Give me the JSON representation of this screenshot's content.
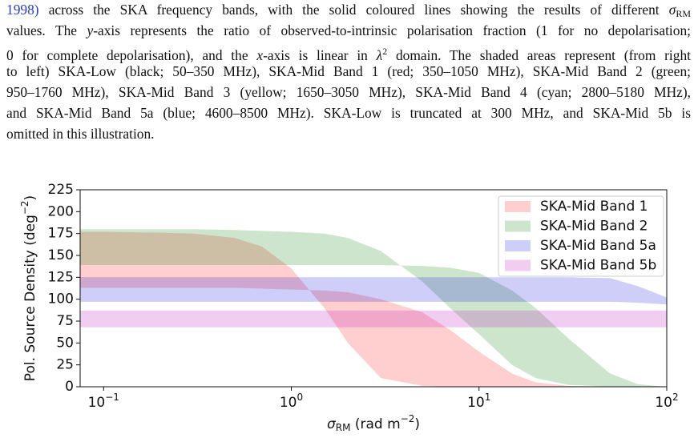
{
  "caption": {
    "lines": [
      [
        {
          "text": "1998)",
          "style": "link"
        },
        " across the SKA frequency bands, with the solid coloured lines showing the results of different ",
        {
          "text": "σ",
          "style": "i"
        },
        {
          "text": "RM",
          "style": "sub"
        }
      ],
      [
        "values. The ",
        {
          "text": "y",
          "style": "i"
        },
        "-axis represents the ratio of observed-to-intrinsic polarisation fraction (1 for no depolarisation;"
      ],
      [
        "0 for complete depolarisation), and the ",
        {
          "text": "x",
          "style": "i"
        },
        "-axis is linear in ",
        {
          "text": "λ",
          "style": "i"
        },
        {
          "text": "2",
          "style": "sup"
        },
        " domain. The shaded areas represent (from right"
      ],
      [
        "to left) SKA-Low (black; 50–350 MHz), SKA-Mid Band 1 (red; 350–1050 MHz), SKA-Mid Band 2 (green;"
      ],
      [
        "950–1760 MHz), SKA-Mid Band 3 (yellow; 1650–3050 MHz), SKA-Mid Band 4 (cyan; 2800–5180 MHz),"
      ],
      [
        "and SKA-Mid Band 5a (blue; 4600–8500 MHz). SKA-Low is truncated at 300 MHz, and SKA-Mid 5b is"
      ],
      [
        "omitted in this illustration."
      ]
    ]
  },
  "chart_data": {
    "type": "area",
    "log_x": true,
    "legend": "upper right",
    "alpha": 0.22,
    "xlabel": [
      {
        "text": "σ",
        "style": "i"
      },
      {
        "text": "RM",
        "style": "sub"
      },
      " (rad m",
      {
        "text": "−2",
        "style": "sup"
      },
      ")"
    ],
    "ylabel": [
      "Pol. Source Density (deg",
      {
        "text": "−2",
        "style": "sup"
      },
      ")"
    ],
    "xlim": [
      0.075,
      100
    ],
    "ylim": [
      0,
      225
    ],
    "xticks": [
      {
        "value": 0.1,
        "label": "10",
        "exponent": "−1"
      },
      {
        "value": 1,
        "label": "10",
        "exponent": "0"
      },
      {
        "value": 10,
        "label": "10",
        "exponent": "1"
      },
      {
        "value": 100,
        "label": "10",
        "exponent": "2"
      }
    ],
    "yticks": [
      0,
      25,
      50,
      75,
      100,
      125,
      150,
      175,
      200,
      225
    ],
    "x": [
      0.075,
      0.1,
      0.2,
      0.3,
      0.5,
      0.7,
      1,
      1.5,
      2,
      3,
      5,
      7,
      10,
      15,
      20,
      30,
      50,
      70,
      100
    ],
    "series": [
      {
        "name": "SKA-Mid Band 1",
        "color": "#ff2020",
        "values": [
          177,
          177,
          176,
          175,
          170,
          160,
          135,
          90,
          50,
          10,
          1,
          0,
          0,
          0,
          0,
          0,
          0,
          0,
          0
        ],
        "lower": [
          113,
          113,
          113,
          113,
          113,
          112,
          111,
          110,
          108,
          100,
          85,
          65,
          40,
          15,
          5,
          1,
          0,
          0,
          0
        ]
      },
      {
        "name": "SKA-Mid Band 2",
        "color": "#1a8a1a",
        "values": [
          180,
          180,
          180,
          180,
          179,
          178,
          177,
          175,
          170,
          155,
          120,
          90,
          60,
          25,
          10,
          2,
          0,
          0,
          0
        ],
        "lower": [
          139,
          139,
          139,
          139,
          139,
          139,
          139,
          139,
          139,
          139,
          138,
          136,
          130,
          110,
          90,
          55,
          15,
          3,
          0
        ]
      },
      {
        "name": "SKA-Mid Band 5a",
        "color": "#2020e0",
        "values": [
          125,
          125,
          125,
          125,
          125,
          125,
          125,
          125,
          125,
          125,
          125,
          125,
          125,
          125,
          125,
          125,
          124,
          115,
          102
        ],
        "lower": [
          97,
          97,
          97,
          97,
          97,
          97,
          97,
          97,
          97,
          97,
          97,
          97,
          97,
          97,
          97,
          97,
          97,
          96,
          94
        ]
      },
      {
        "name": "SKA-Mid Band 5b",
        "color": "#c020c0",
        "values": [
          87,
          87,
          87,
          87,
          87,
          87,
          87,
          87,
          87,
          87,
          87,
          87,
          87,
          87,
          87,
          87,
          87,
          87,
          87
        ],
        "lower": [
          68,
          68,
          68,
          68,
          68,
          68,
          68,
          68,
          68,
          68,
          68,
          68,
          68,
          68,
          68,
          68,
          68,
          68,
          68
        ]
      }
    ]
  }
}
